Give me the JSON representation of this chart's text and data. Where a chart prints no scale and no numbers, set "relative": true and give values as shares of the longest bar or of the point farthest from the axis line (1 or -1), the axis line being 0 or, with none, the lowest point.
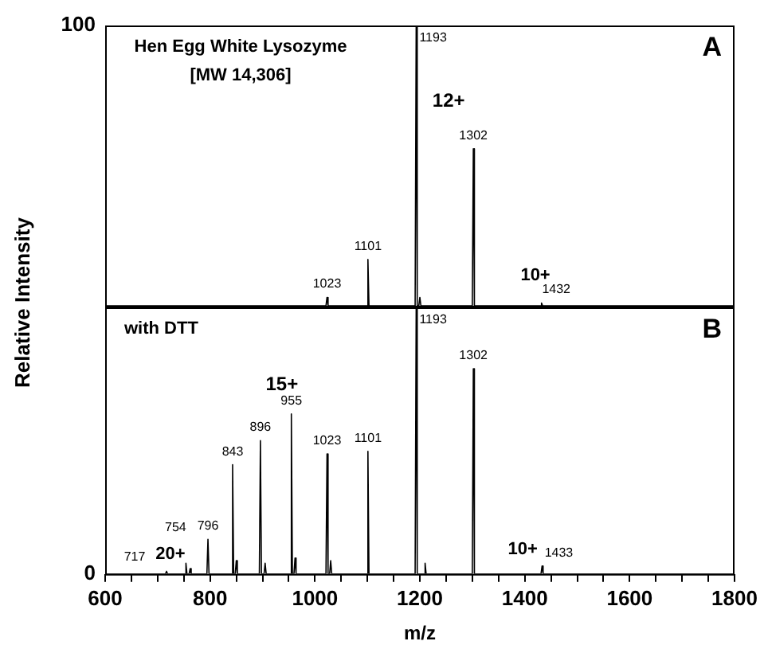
{
  "chart_data": [
    {
      "type": "line",
      "title": "Hen Egg White Lysozyme",
      "subtitle": "[MW 14,306]",
      "relative": true,
      "xlim": [
        600,
        1800
      ],
      "tick_labels": false,
      "grid": false,
      "legend": false,
      "marker": "none",
      "annotations": [
        "100",
        "A",
        "12+",
        "10+",
        {
          "text": "1193",
          "x": 1193,
          "y": 1
        },
        {
          "text": "1302",
          "x": 1302,
          "y": 0.56
        },
        {
          "text": "1101",
          "x": 1101,
          "y": 0.165
        },
        {
          "text": "1023",
          "x": 1023,
          "y": 0.03
        },
        {
          "text": "1432",
          "x": 1460,
          "y": 0.01
        }
      ],
      "series": [
        {
          "color": "#000000",
          "x": [
            600,
            1021,
            1023,
            1025,
            1099,
            1101,
            1103,
            1191,
            1193,
            1195,
            1198,
            1200,
            1202,
            1300,
            1302,
            1304,
            1430,
            1432,
            1434,
            1800
          ],
          "values": [
            0,
            0,
            0.03,
            0,
            0,
            0.165,
            0,
            0,
            1,
            0,
            0,
            0.03,
            0,
            0,
            0.56,
            0,
            0,
            0.01,
            0,
            0
          ]
        }
      ]
    },
    {
      "type": "line",
      "title": "with DTT",
      "relative": true,
      "xlim": [
        600,
        1800
      ],
      "xticks": [
        600,
        {
          "value": 650,
          "label": null
        },
        800,
        {
          "value": 700,
          "label": null
        },
        {
          "value": 750,
          "label": null
        },
        {
          "value": 850,
          "label": null
        },
        {
          "value": 900,
          "label": null
        },
        {
          "value": 950,
          "label": null
        },
        1000,
        {
          "value": 1050,
          "label": null
        },
        {
          "value": 1100,
          "label": null
        },
        {
          "value": 1150,
          "label": null
        },
        1200,
        {
          "value": 1250,
          "label": null
        },
        {
          "value": 1300,
          "label": null
        },
        {
          "value": 1350,
          "label": null
        },
        1400,
        {
          "value": 1450,
          "label": null
        },
        {
          "value": 1500,
          "label": null
        },
        {
          "value": 1550,
          "label": null
        },
        1600,
        {
          "value": 1650,
          "label": null
        },
        {
          "value": 1700,
          "label": null
        },
        {
          "value": 1750,
          "label": null
        },
        1800
      ],
      "tick_labels": "x",
      "grid": false,
      "legend": false,
      "marker": "none",
      "xlabel": "m/z",
      "ylabel": "Relative Intensity",
      "annotations": [
        "0",
        "B",
        "15+",
        "20+",
        "754",
        "717",
        "10+",
        {
          "text": "1193",
          "x": 1193,
          "y": 1
        },
        {
          "text": "1302",
          "x": 1302,
          "y": 0.77
        },
        {
          "text": "955",
          "x": 955,
          "y": 0.6
        },
        {
          "text": "896",
          "x": 896,
          "y": 0.5
        },
        {
          "text": "843",
          "x": 843,
          "y": 0.41
        },
        {
          "text": "1023",
          "x": 1023,
          "y": 0.45
        },
        {
          "text": "1101",
          "x": 1101,
          "y": 0.46
        },
        {
          "text": "796",
          "x": 796,
          "y": 0.13
        },
        {
          "text": "1433",
          "x": 1465,
          "y": 0.03
        }
      ],
      "series": [
        {
          "color": "#000000",
          "x": [
            600,
            715,
            717,
            719,
            752,
            754,
            756,
            760,
            762,
            764,
            794,
            796,
            798,
            841,
            843,
            845,
            848,
            850,
            852,
            894,
            896,
            898,
            903,
            905,
            907,
            953,
            955,
            957,
            960,
            962,
            964,
            1021,
            1023,
            1025,
            1028,
            1030,
            1032,
            1099,
            1101,
            1103,
            1191,
            1193,
            1195,
            1208,
            1210,
            1212,
            1300,
            1302,
            1304,
            1431,
            1433,
            1435,
            1800
          ],
          "values": [
            0,
            0,
            0.01,
            0,
            0,
            0.04,
            0,
            0,
            0.02,
            0,
            0,
            0.13,
            0,
            0,
            0.41,
            0,
            0,
            0.05,
            0,
            0,
            0.5,
            0,
            0,
            0.04,
            0,
            0,
            0.6,
            0,
            0,
            0.06,
            0,
            0,
            0.45,
            0,
            0,
            0.05,
            0,
            0,
            0.46,
            0,
            0,
            1,
            0,
            0,
            0.04,
            0,
            0,
            0.77,
            0,
            0,
            0.03,
            0,
            0
          ]
        }
      ]
    }
  ]
}
